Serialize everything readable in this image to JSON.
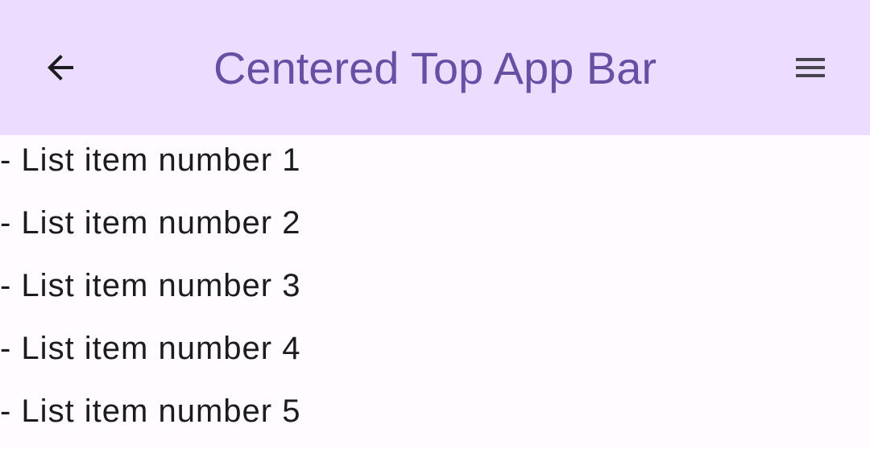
{
  "app_bar": {
    "title": "Centered Top App Bar",
    "navigation_icon": "arrow-back-icon",
    "action_icon": "menu-icon",
    "background_color": "#EADDFF",
    "title_color": "#6750A4"
  },
  "list": {
    "items": [
      "- List item number 1",
      "- List item number 2",
      "- List item number 3",
      "- List item number 4",
      "- List item number 5"
    ]
  }
}
